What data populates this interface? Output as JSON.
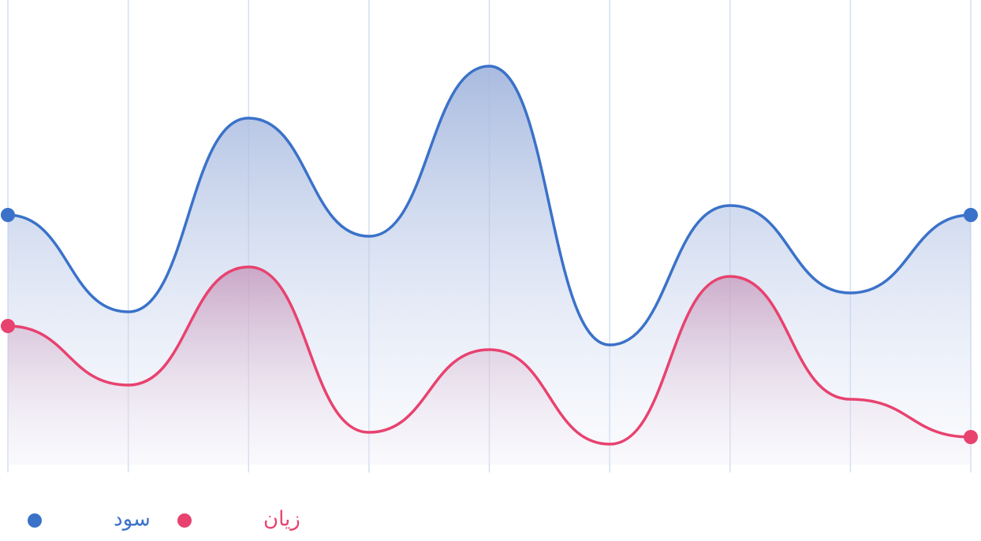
{
  "chart_data": {
    "type": "area",
    "categories": [
      null,
      null,
      null,
      null,
      null,
      null,
      null,
      null,
      null
    ],
    "ylim": [
      0,
      100
    ],
    "grid": true,
    "series": [
      {
        "name": "سود",
        "color": "#3a72c9",
        "values": [
          54.5,
          34,
          75,
          50,
          86,
          27,
          56.5,
          38,
          54.5
        ]
      },
      {
        "name": "زیان",
        "color": "#e8426f",
        "values": [
          31,
          18.5,
          43.5,
          8.5,
          26,
          6,
          41.5,
          15.5,
          7.5
        ]
      }
    ]
  }
}
